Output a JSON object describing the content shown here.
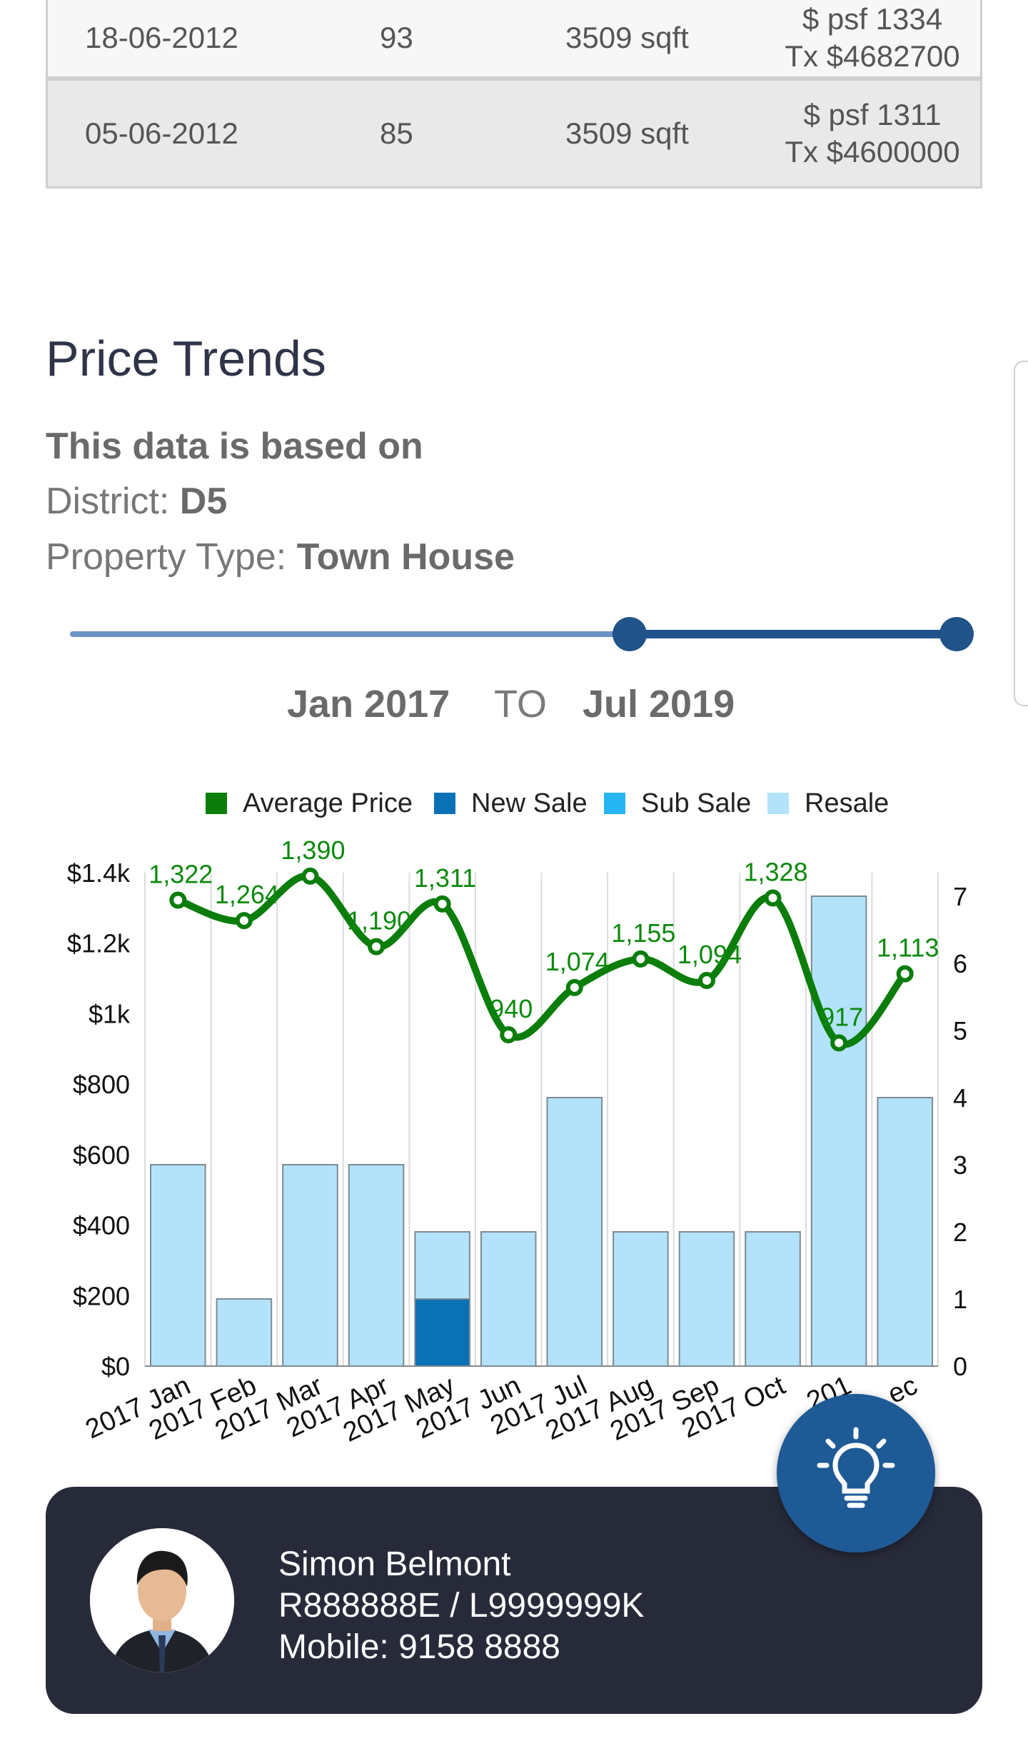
{
  "transactions": [
    {
      "date": "18-06-2012",
      "psm": "93",
      "area": "3509 sqft",
      "psf": "$ psf 1334",
      "tx": "Tx $4682700"
    },
    {
      "date": "05-06-2012",
      "psm": "85",
      "area": "3509 sqft",
      "psf": "$ psf 1311",
      "tx": "Tx $4600000"
    }
  ],
  "price_trends": {
    "title": "Price Trends",
    "based_on": "This data is based on",
    "district_label": "District: ",
    "district_value": "D5",
    "type_label": "Property Type: ",
    "type_value": "Town House",
    "range_from": "Jan 2017",
    "range_to_label": "TO",
    "range_to": "Jul 2019",
    "slider_start_fraction": 0.624,
    "slider_end_fraction": 1.0
  },
  "legend": [
    {
      "label": "Average Price",
      "color": "#0a7d0a"
    },
    {
      "label": "New Sale",
      "color": "#0b71b7"
    },
    {
      "label": "Sub Sale",
      "color": "#25b5f2"
    },
    {
      "label": "Resale",
      "color": "#b3e3fa"
    }
  ],
  "chart_data": {
    "type": "bar",
    "categories": [
      "2017 Jan",
      "2017 Feb",
      "2017 Mar",
      "2017 Apr",
      "2017 May",
      "2017 Jun",
      "2017 Jul",
      "2017 Aug",
      "2017 Sep",
      "2017 Oct",
      "2017 Nov",
      "2017 Dec"
    ],
    "visible_category_labels": [
      "2017 Jan",
      "2017 Feb",
      "2017 Mar",
      "2017 Apr",
      "2017 May",
      "2017 Jun",
      "2017 Jul",
      "2017 Aug",
      "2017 Sep",
      "2017 Oct",
      "201",
      "ec"
    ],
    "series": [
      {
        "name": "Average Price",
        "type": "line",
        "axis": "left",
        "values": [
          1322,
          1264,
          1390,
          1190,
          1311,
          940,
          1074,
          1155,
          1094,
          1328,
          917,
          1113
        ]
      },
      {
        "name": "New Sale",
        "type": "bar",
        "axis": "right",
        "values": [
          0,
          0,
          0,
          0,
          1,
          0,
          0,
          0,
          0,
          0,
          0,
          0
        ]
      },
      {
        "name": "Sub Sale",
        "type": "bar",
        "axis": "right",
        "values": [
          0,
          0,
          0,
          0,
          0,
          0,
          0,
          0,
          0,
          0,
          0,
          0
        ]
      },
      {
        "name": "Resale",
        "type": "bar",
        "axis": "right",
        "values": [
          3,
          1,
          3,
          3,
          1,
          2,
          4,
          2,
          2,
          2,
          7,
          4
        ]
      }
    ],
    "data_labels": [
      "1,322",
      "1,264",
      "1,390",
      "1,190",
      "1,311",
      "940",
      "1,074",
      "1,155",
      "1,094",
      "1,328",
      "917",
      "1,113"
    ],
    "left_ticks": [
      "$0",
      "$200",
      "$400",
      "$600",
      "$800",
      "$1k",
      "$1.2k",
      "$1.4k"
    ],
    "left_range": [
      0,
      1400
    ],
    "right_ticks": [
      "0",
      "1",
      "2",
      "3",
      "4",
      "5",
      "6",
      "7"
    ],
    "right_range": [
      0,
      7.5
    ],
    "legend_position": "top"
  },
  "agent": {
    "name": "Simon Belmont",
    "license": "R888888E / L9999999K",
    "mobile": "Mobile: 9158 8888"
  },
  "fab_icon": "lightbulb-icon"
}
